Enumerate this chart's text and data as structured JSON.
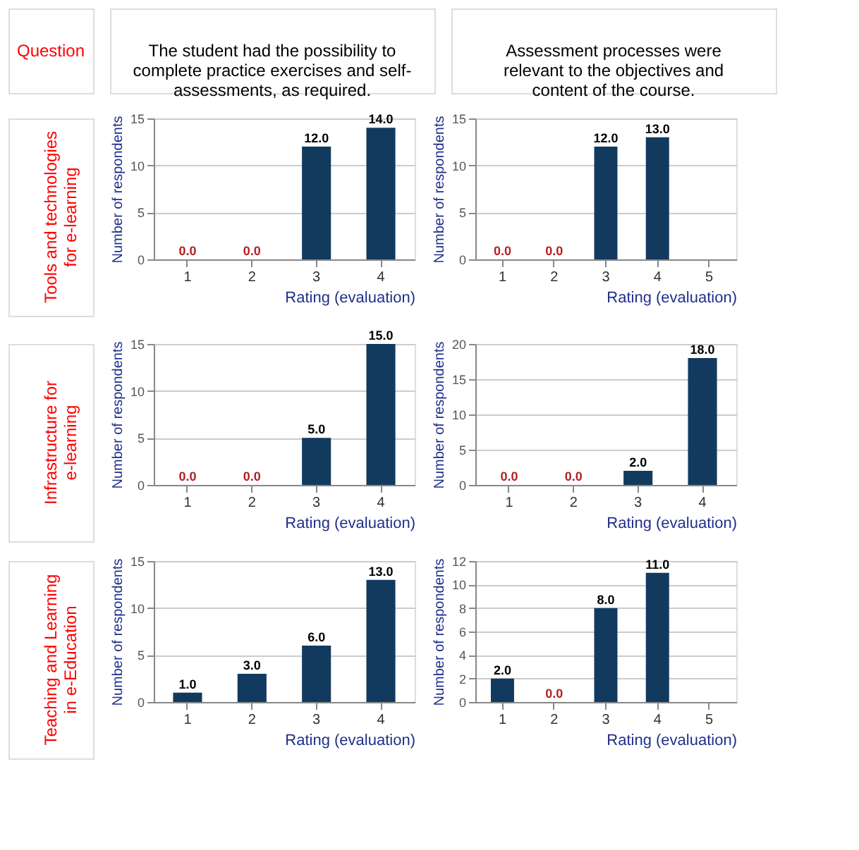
{
  "chart_data": [
    {
      "type": "other",
      "annotations": [
        "Question",
        "Tools and technologies\nfor e-learning",
        "Infrastructure for\ne-learning",
        "Teaching and Learning\nin e-Education"
      ]
    },
    {
      "type": "bar",
      "title": "The student had the possibility to\ncomplete practice exercises and self-\nassessments, as required.",
      "xlabel": "Rating (evaluation)",
      "ylabel": "Number of respondents",
      "categories": [
        "1",
        "2",
        "3",
        "4"
      ],
      "values": [
        0,
        0,
        12,
        14
      ],
      "value_labels": [
        "0.0",
        "0.0",
        "12.0",
        "14.0"
      ],
      "color": "#123a5e",
      "ylim": [
        0,
        15
      ],
      "yticks": [
        0,
        5,
        10,
        15
      ],
      "grid": "y"
    },
    {
      "type": "bar",
      "title": "Assessment processes were\nrelevant to the objectives and\ncontent of the course.",
      "xlabel": "Rating (evaluation)",
      "ylabel": "Number of respondents",
      "categories": [
        "1",
        "2",
        "3",
        "4",
        "5"
      ],
      "values": [
        0,
        0,
        12,
        13,
        null
      ],
      "value_labels": [
        "0.0",
        "0.0",
        "12.0",
        "13.0",
        null
      ],
      "color": "#123a5e",
      "ylim": [
        0,
        15
      ],
      "yticks": [
        0,
        5,
        10,
        15
      ],
      "grid": "y"
    },
    {
      "type": "bar",
      "xlabel": "Rating (evaluation)",
      "ylabel": "Number of respondents",
      "categories": [
        "1",
        "2",
        "3",
        "4"
      ],
      "values": [
        0,
        0,
        5,
        15
      ],
      "value_labels": [
        "0.0",
        "0.0",
        "5.0",
        "15.0"
      ],
      "color": "#123a5e",
      "ylim": [
        0,
        15
      ],
      "yticks": [
        0,
        5,
        10,
        15
      ],
      "grid": "y"
    },
    {
      "type": "bar",
      "xlabel": "Rating (evaluation)",
      "ylabel": "Number of respondents",
      "categories": [
        "1",
        "2",
        "3",
        "4"
      ],
      "values": [
        0,
        0,
        2,
        18
      ],
      "value_labels": [
        "0.0",
        "0.0",
        "2.0",
        "18.0"
      ],
      "color": "#123a5e",
      "ylim": [
        0,
        20
      ],
      "yticks": [
        0,
        5,
        10,
        15,
        20
      ],
      "grid": "y"
    },
    {
      "type": "bar",
      "xlabel": "Rating (evaluation)",
      "ylabel": "Number of respondents",
      "categories": [
        "1",
        "2",
        "3",
        "4"
      ],
      "values": [
        1,
        3,
        6,
        13
      ],
      "value_labels": [
        "1.0",
        "3.0",
        "6.0",
        "13.0"
      ],
      "color": "#123a5e",
      "ylim": [
        0,
        15
      ],
      "yticks": [
        0,
        5,
        10,
        15
      ],
      "grid": "y"
    },
    {
      "type": "bar",
      "xlabel": "Rating (evaluation)",
      "ylabel": "Number of respondents",
      "categories": [
        "1",
        "2",
        "3",
        "4",
        "5"
      ],
      "values": [
        2,
        0,
        8,
        11,
        null
      ],
      "value_labels": [
        "2.0",
        "0.0",
        "8.0",
        "11.0",
        null
      ],
      "color": "#123a5e",
      "ylim": [
        0,
        12
      ],
      "yticks": [
        0,
        2,
        4,
        6,
        8,
        10,
        12
      ],
      "grid": "y"
    }
  ]
}
